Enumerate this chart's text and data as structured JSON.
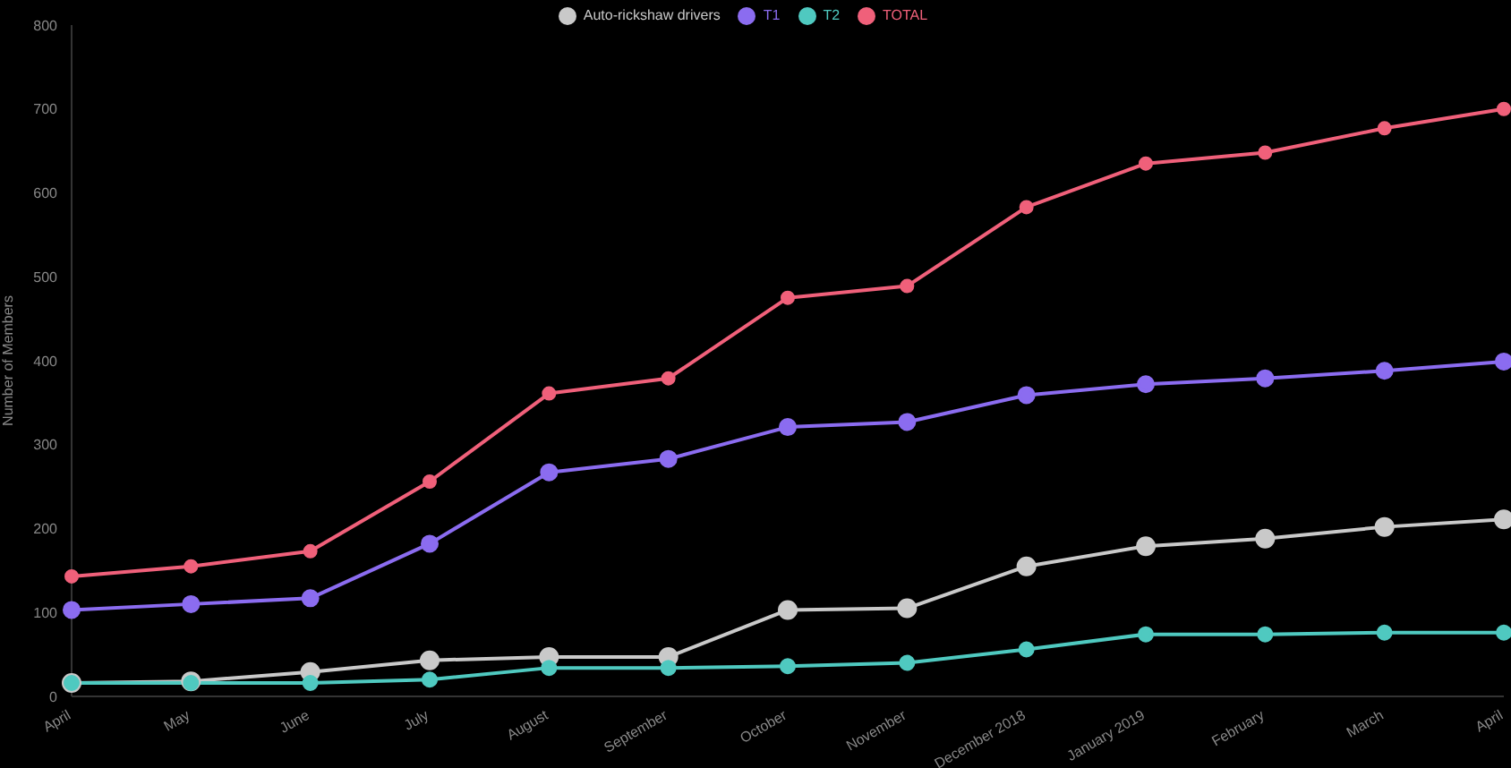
{
  "chart_data": {
    "type": "line",
    "ylabel": "Number of Members",
    "categories": [
      "April",
      "May",
      "June",
      "July",
      "August",
      "September",
      "October",
      "November",
      "December 2018",
      "January 2019",
      "February",
      "March",
      "April"
    ],
    "series": [
      {
        "name": "Auto-rickshaw drivers",
        "color": "#c9c9c9",
        "values": [
          16,
          18,
          29,
          43,
          47,
          47,
          103,
          105,
          155,
          179,
          188,
          202,
          211
        ]
      },
      {
        "name": "T1",
        "color": "#8b6cf0",
        "values": [
          103,
          110,
          117,
          182,
          267,
          283,
          321,
          327,
          359,
          372,
          379,
          388,
          399
        ]
      },
      {
        "name": "T2",
        "color": "#4fc9c0",
        "values": [
          16,
          16,
          16,
          20,
          34,
          34,
          36,
          40,
          56,
          74,
          74,
          76,
          76
        ]
      },
      {
        "name": "TOTAL",
        "color": "#f0607a",
        "values": [
          143,
          155,
          173,
          256,
          361,
          379,
          475,
          489,
          583,
          635,
          648,
          677,
          700
        ]
      }
    ],
    "ylim": [
      0,
      800
    ],
    "yticks": [
      0,
      100,
      200,
      300,
      400,
      500,
      600,
      700,
      800
    ],
    "grid": false,
    "legend": "top",
    "marker": "circle"
  }
}
